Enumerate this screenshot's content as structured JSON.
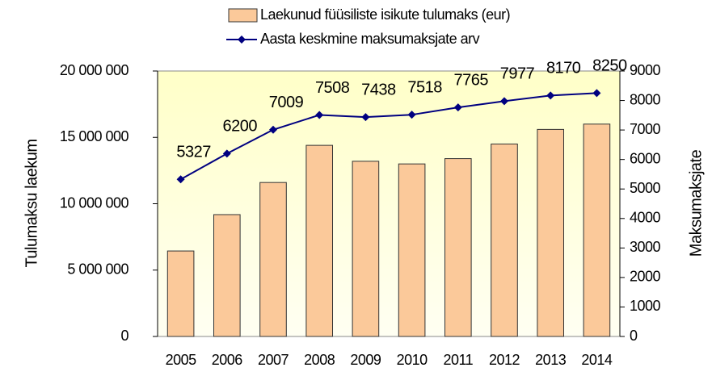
{
  "chart_data": {
    "type": "bar_line",
    "categories": [
      "2005",
      "2006",
      "2007",
      "2008",
      "2009",
      "2010",
      "2011",
      "2012",
      "2013",
      "2014"
    ],
    "series": [
      {
        "name": "Laekunud füüsiliste isikute tulumaks (eur)",
        "type": "bar",
        "color": "#fbc99a",
        "values": [
          6440000,
          9180000,
          11600000,
          14400000,
          13200000,
          13000000,
          13400000,
          14500000,
          15600000,
          16000000
        ]
      },
      {
        "name": "Aasta keskmine maksumaksjate arv",
        "type": "line",
        "axis": "y2",
        "color": "#000080",
        "values": [
          5327,
          6200,
          7009,
          7508,
          7438,
          7518,
          7765,
          7977,
          8170,
          8250
        ]
      }
    ],
    "ylabel": "Tulumaksu laekum",
    "y2label": "Maksumaksjate",
    "ylim": [
      0,
      20000000
    ],
    "yticks": [
      0,
      {
        "value": 5000000,
        "label": "5 000 000"
      },
      {
        "value": 10000000,
        "label": "10 000 000"
      },
      {
        "value": 15000000,
        "label": "15 000 000"
      },
      {
        "value": 20000000,
        "label": "20 000 000"
      }
    ],
    "y2lim": [
      0,
      9000
    ],
    "y2ticks": [
      0,
      1000,
      2000,
      3000,
      4000,
      5000,
      6000,
      7000,
      8000,
      9000
    ],
    "plot_background": "#ffffcc",
    "legend": "top"
  }
}
